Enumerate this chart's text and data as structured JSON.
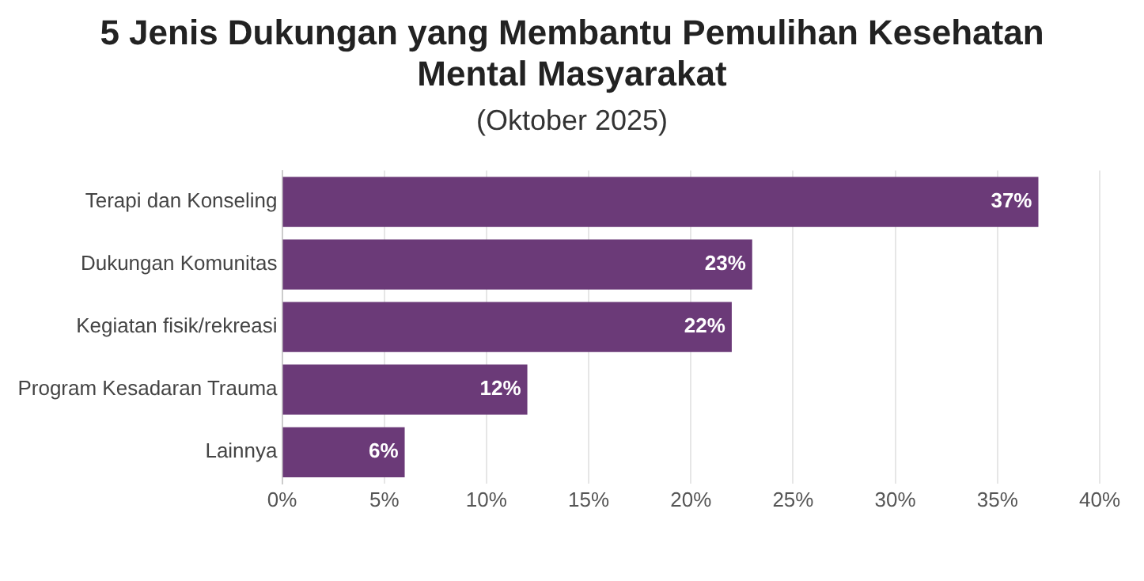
{
  "chart_data": {
    "type": "bar",
    "orientation": "horizontal",
    "title": "5 Jenis Dukungan yang Membantu Pemulihan Kesehatan Mental Masyarakat",
    "subtitle": "(Oktober 2025)",
    "categories": [
      "Terapi dan Konseling",
      "Dukungan Komunitas",
      "Kegiatan fisik/rekreasi",
      "Program Kesadaran Trauma",
      "Lainnya"
    ],
    "values": [
      37,
      23,
      22,
      12,
      6
    ],
    "value_labels": [
      "37%",
      "23%",
      "22%",
      "12%",
      "6%"
    ],
    "color": "#6b3a78",
    "xlim": [
      0,
      40
    ],
    "xticks": [
      {
        "value": 0,
        "label": "0%"
      },
      {
        "value": 5,
        "label": "5%"
      },
      {
        "value": 10,
        "label": "10%"
      },
      {
        "value": 15,
        "label": "15%"
      },
      {
        "value": 20,
        "label": "20%"
      },
      {
        "value": 25,
        "label": "25%"
      },
      {
        "value": 30,
        "label": "30%"
      },
      {
        "value": 35,
        "label": "35%"
      },
      {
        "value": 40,
        "label": "40%"
      }
    ],
    "grid": "x"
  }
}
